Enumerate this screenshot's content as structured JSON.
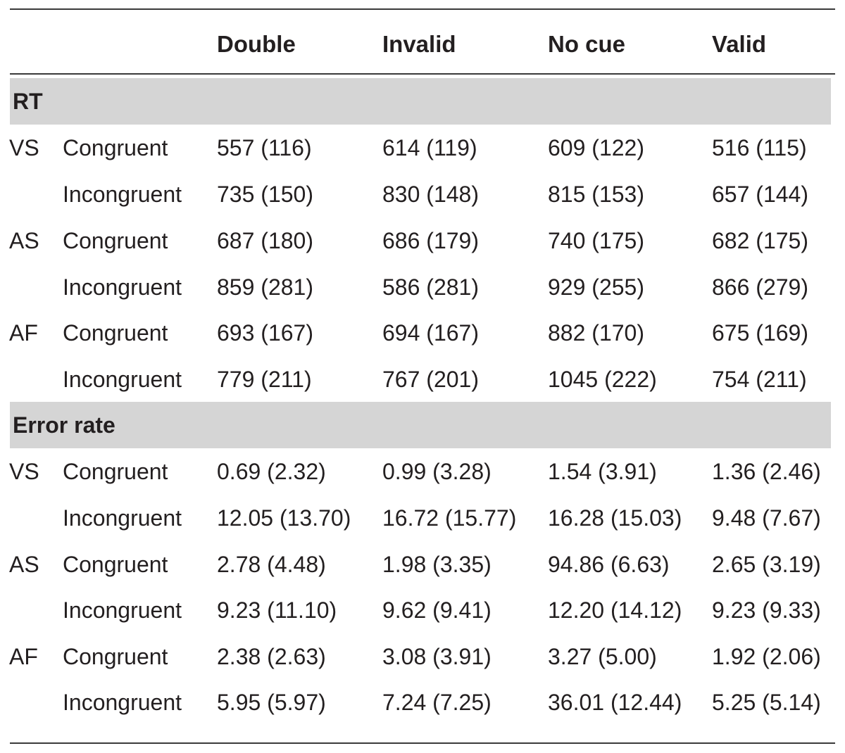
{
  "table": {
    "columns": [
      "",
      "",
      "Double",
      "Invalid",
      "No cue",
      "Valid"
    ],
    "sections": [
      {
        "title": "RT",
        "rows": [
          {
            "group": "VS",
            "condition": "Congruent",
            "values": [
              "557 (116)",
              "614 (119)",
              "609 (122)",
              "516 (115)"
            ]
          },
          {
            "group": "",
            "condition": "Incongruent",
            "values": [
              "735 (150)",
              "830 (148)",
              "815 (153)",
              "657 (144)"
            ]
          },
          {
            "group": "AS",
            "condition": "Congruent",
            "values": [
              "687 (180)",
              "686 (179)",
              "740 (175)",
              "682 (175)"
            ]
          },
          {
            "group": "",
            "condition": "Incongruent",
            "values": [
              "859 (281)",
              "586 (281)",
              "929 (255)",
              "866 (279)"
            ]
          },
          {
            "group": "AF",
            "condition": "Congruent",
            "values": [
              "693 (167)",
              "694 (167)",
              "882 (170)",
              "675 (169)"
            ]
          },
          {
            "group": "",
            "condition": "Incongruent",
            "values": [
              "779 (211)",
              "767 (201)",
              "1045 (222)",
              "754 (211)"
            ]
          }
        ]
      },
      {
        "title": "Error rate",
        "rows": [
          {
            "group": "VS",
            "condition": "Congruent",
            "values": [
              "0.69 (2.32)",
              "0.99 (3.28)",
              "1.54 (3.91)",
              "1.36 (2.46)"
            ]
          },
          {
            "group": "",
            "condition": "Incongruent",
            "values": [
              "12.05 (13.70)",
              "16.72 (15.77)",
              "16.28 (15.03)",
              "9.48 (7.67)"
            ]
          },
          {
            "group": "AS",
            "condition": "Congruent",
            "values": [
              "2.78 (4.48)",
              "1.98 (3.35)",
              "94.86 (6.63)",
              "2.65 (3.19)"
            ]
          },
          {
            "group": "",
            "condition": "Incongruent",
            "values": [
              "9.23 (11.10)",
              "9.62 (9.41)",
              "12.20 (14.12)",
              "9.23 (9.33)"
            ]
          },
          {
            "group": "AF",
            "condition": "Congruent",
            "values": [
              "2.38 (2.63)",
              "3.08 (3.91)",
              "3.27 (5.00)",
              "1.92 (2.06)"
            ]
          },
          {
            "group": "",
            "condition": "Incongruent",
            "values": [
              "5.95 (5.97)",
              "7.24 (7.25)",
              "36.01 (12.44)",
              "5.25 (5.14)"
            ]
          }
        ]
      }
    ]
  }
}
